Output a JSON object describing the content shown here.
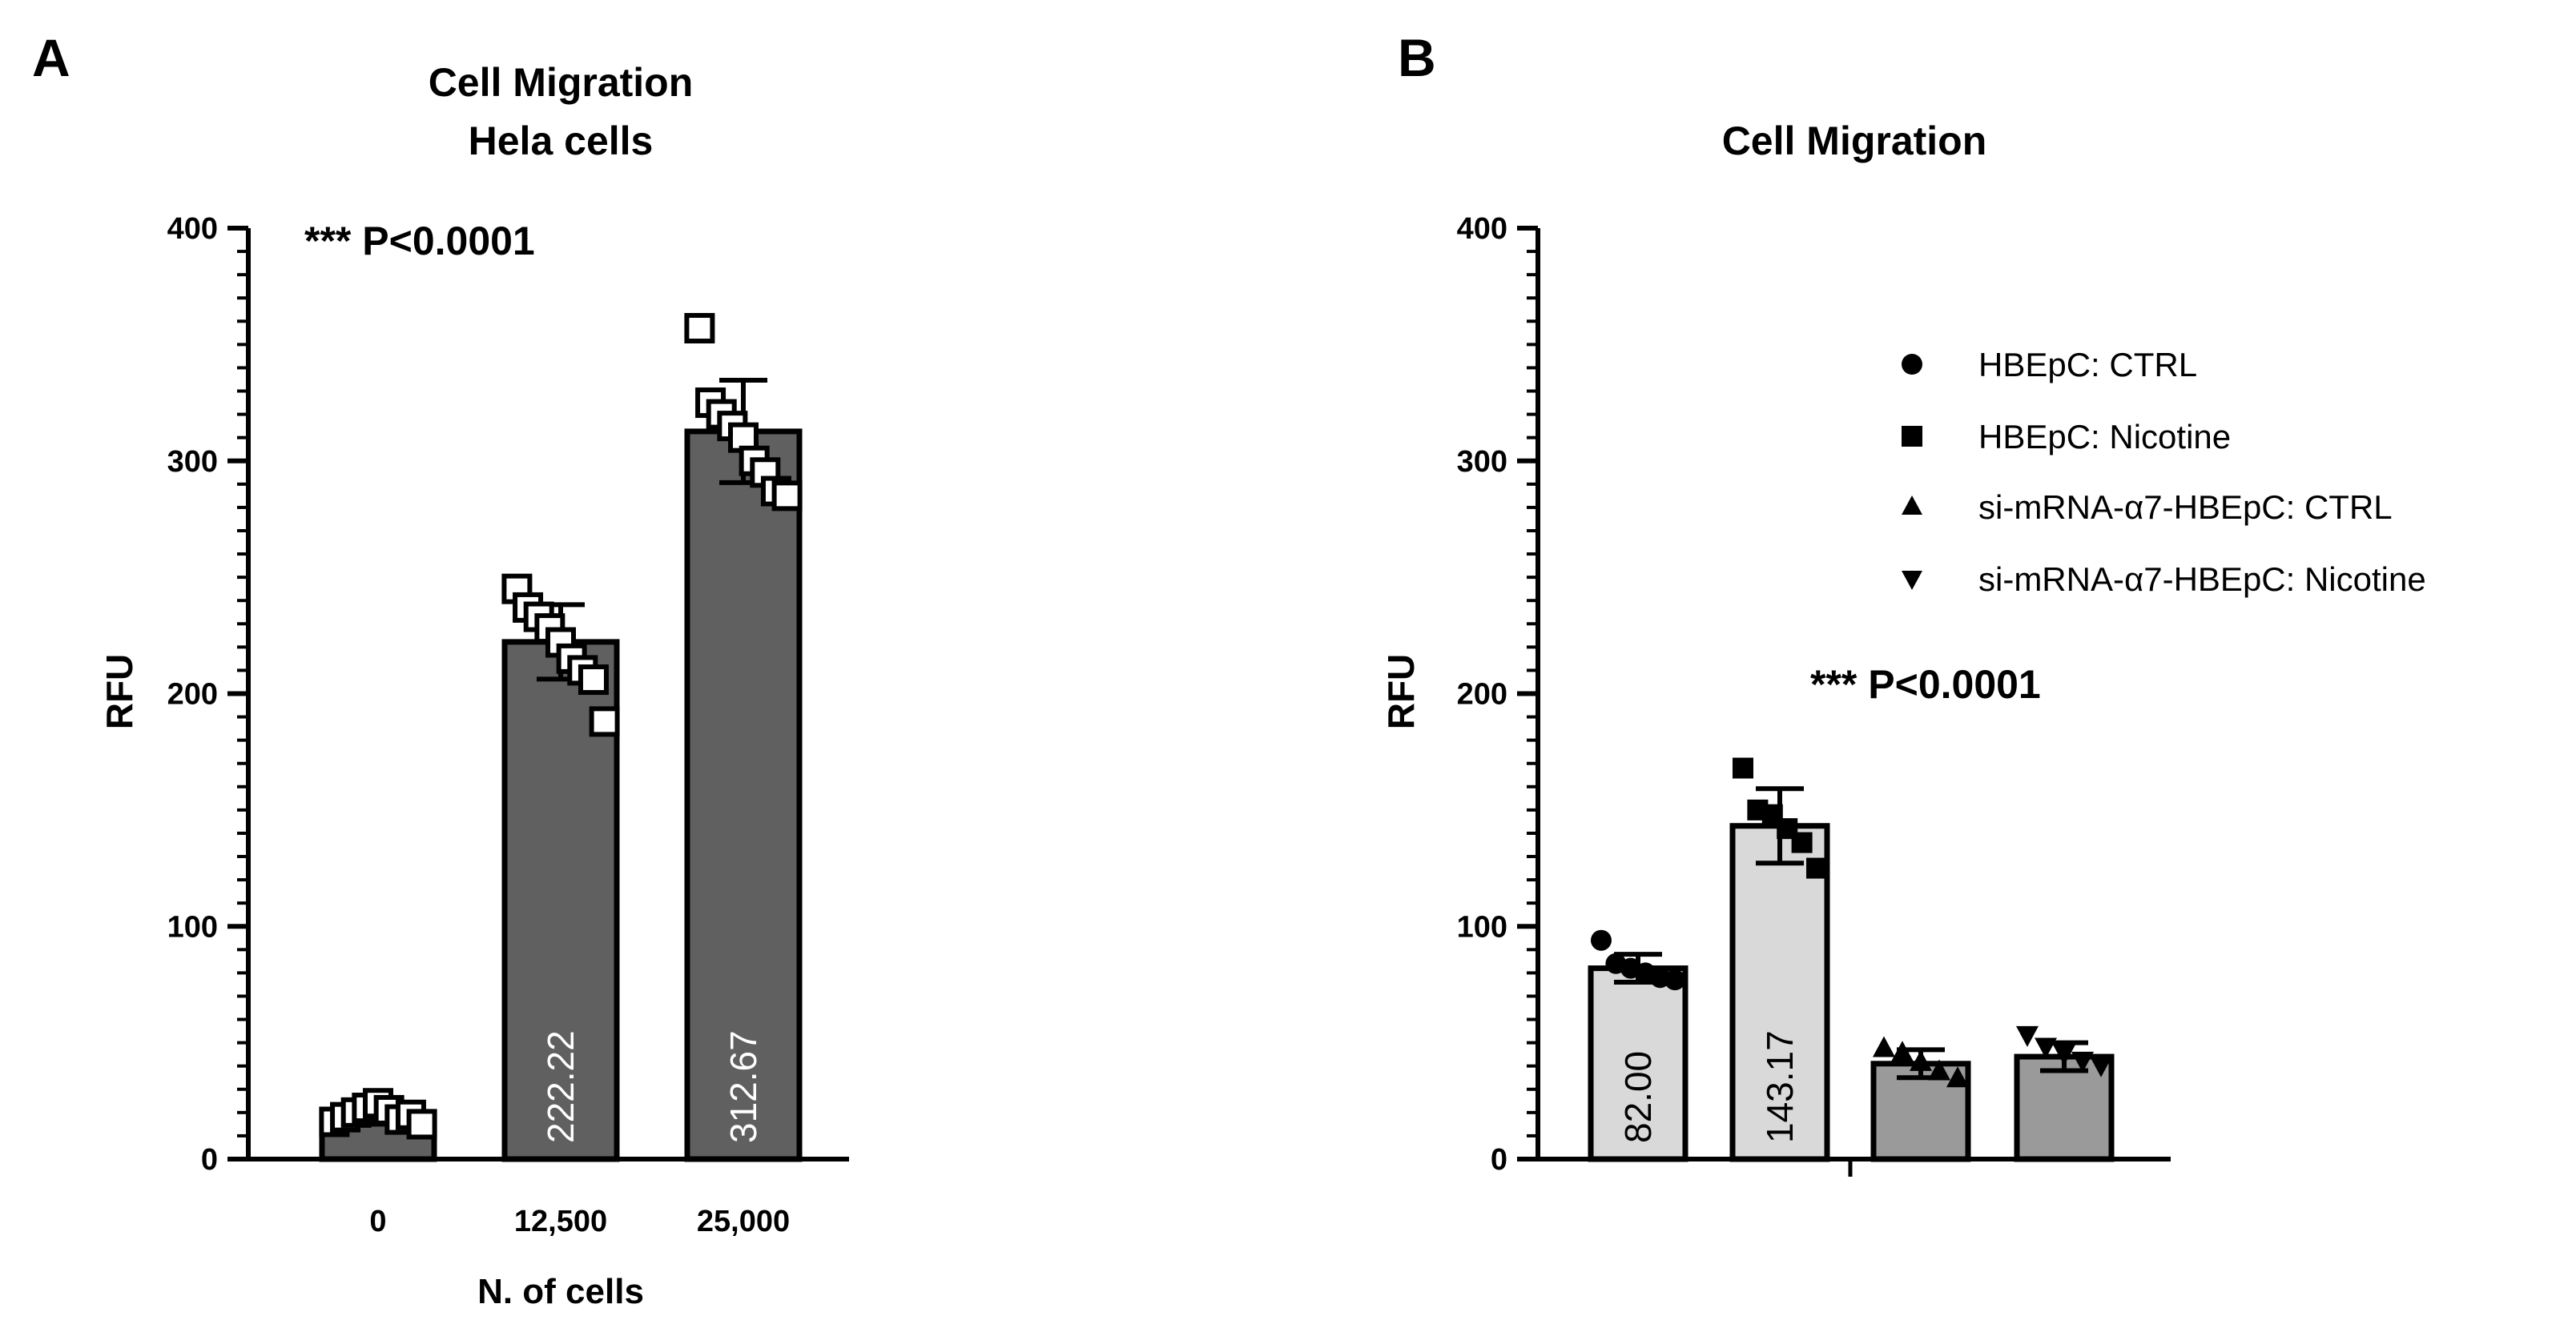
{
  "chart_data": [
    {
      "panel": "A",
      "type": "bar",
      "title": [
        "Cell Migration",
        "Hela cells"
      ],
      "xlabel": "N. of cells",
      "ylabel": "RFU",
      "ylim": [
        0,
        400
      ],
      "yticks": [
        0,
        100,
        200,
        300,
        400
      ],
      "annotation": "*** P<0.0001",
      "categories": [
        "0",
        "12,500",
        "25,000"
      ],
      "values": [
        19,
        222.22,
        312.67
      ],
      "errors": [
        4,
        16,
        22
      ],
      "value_labels": [
        "",
        "222.22",
        "312.67"
      ],
      "bar_color": "#606060",
      "label_color": "#ffffff",
      "marker": "open-square",
      "points": [
        [
          16,
          18,
          20,
          22,
          24,
          21,
          17,
          19,
          15
        ],
        [
          245,
          237,
          233,
          228,
          222,
          215,
          210,
          206,
          188
        ],
        [
          357,
          325,
          320,
          315,
          310,
          300,
          295,
          287,
          285
        ]
      ]
    },
    {
      "panel": "B",
      "type": "bar",
      "title": [
        "Cell Migration"
      ],
      "xlabel": "",
      "ylabel": "RFU",
      "ylim": [
        0,
        400
      ],
      "yticks": [
        0,
        100,
        200,
        300,
        400
      ],
      "annotation": "*** P<0.0001",
      "categories": [
        "HBEpC: CTRL",
        "HBEpC: Nicotine",
        "si-mRNA-α7-HBEpC: CTRL",
        "si-mRNA-α7-HBEpC: Nicotine"
      ],
      "values": [
        82.0,
        143.17,
        41,
        44
      ],
      "errors": [
        6,
        16,
        6,
        6
      ],
      "value_labels": [
        "82.00",
        "143.17",
        "",
        ""
      ],
      "bar_colors": [
        "#d9d9d9",
        "#d9d9d9",
        "#9a9a9a",
        "#9a9a9a"
      ],
      "label_color": "#000000",
      "markers": [
        "circle",
        "square",
        "triangle-up",
        "triangle-down"
      ],
      "points": [
        [
          94,
          84,
          82,
          80,
          78,
          77
        ],
        [
          168,
          150,
          148,
          142,
          136,
          125
        ],
        [
          48,
          46,
          42,
          38,
          35
        ],
        [
          53,
          48,
          45,
          42,
          40
        ]
      ],
      "legend": [
        {
          "marker": "circle",
          "label": "HBEpC: CTRL"
        },
        {
          "marker": "square",
          "label": "HBEpC: Nicotine"
        },
        {
          "marker": "triangle-up",
          "label": "si-mRNA-α7-HBEpC: CTRL"
        },
        {
          "marker": "triangle-down",
          "label": "si-mRNA-α7-HBEpC: Nicotine"
        }
      ]
    }
  ]
}
